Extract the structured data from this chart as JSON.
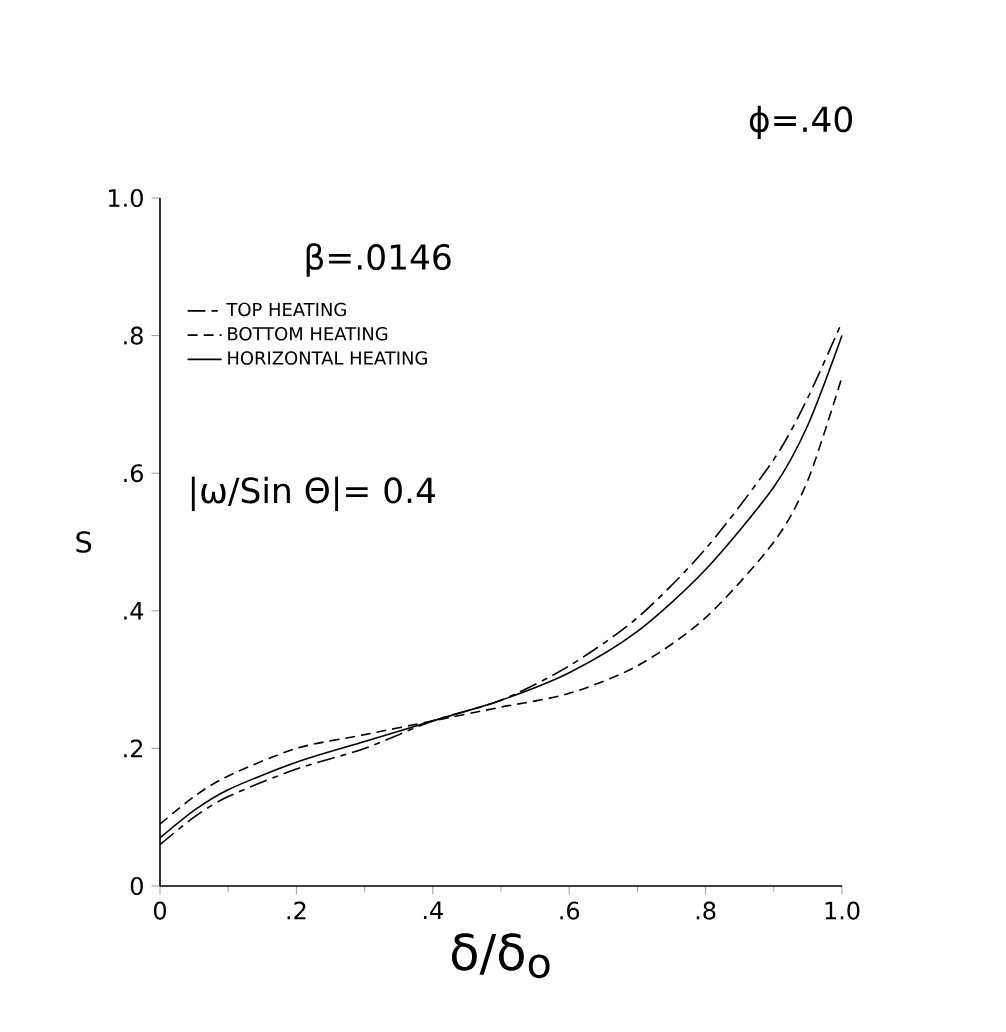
{
  "chart_data": {
    "type": "line",
    "title": "ϕ=.40",
    "xlabel": "δ/δ$_{o}$",
    "ylabel": "S",
    "x": [
      0,
      0.05,
      0.1,
      0.2,
      0.3,
      0.4,
      0.5,
      0.6,
      0.7,
      0.8,
      0.9,
      0.95,
      1.0
    ],
    "series": [
      {
        "name": "TOP HEATING",
        "color": "#000000",
        "line_style": "dashdot",
        "values": [
          0.06,
          0.1,
          0.13,
          0.17,
          0.2,
          0.24,
          0.27,
          0.32,
          0.39,
          0.49,
          0.62,
          0.71,
          0.82
        ]
      },
      {
        "name": "BOTTOM HEATING",
        "color": "#000000",
        "line_style": "dashed",
        "values": [
          0.09,
          0.13,
          0.16,
          0.2,
          0.22,
          0.24,
          0.26,
          0.28,
          0.32,
          0.39,
          0.5,
          0.59,
          0.74
        ]
      },
      {
        "name": "HORIZONTAL HEATING",
        "color": "#000000",
        "line_style": "solid",
        "values": [
          0.07,
          0.11,
          0.14,
          0.18,
          0.21,
          0.24,
          0.27,
          0.31,
          0.37,
          0.46,
          0.58,
          0.67,
          0.8
        ]
      }
    ],
    "annotations": [
      "β=.0146",
      "|ω/Sin Θ|= 0.4"
    ],
    "xlim": [
      0,
      1.0
    ],
    "ylim": [
      0,
      1.0
    ],
    "xticks": [
      0,
      {
        "value": 0.2,
        "label": ".2"
      },
      {
        "value": 0.4,
        "label": ".4"
      },
      {
        "value": 0.6,
        "label": ".6"
      },
      {
        "value": 0.8,
        "label": ".8"
      },
      {
        "value": 1.0,
        "label": "1.0"
      }
    ],
    "yticks": [
      0,
      {
        "value": 0.2,
        "label": ".2"
      },
      {
        "value": 0.4,
        "label": ".4"
      },
      {
        "value": 0.6,
        "label": ".6"
      },
      {
        "value": 0.8,
        "label": ".8"
      },
      {
        "value": 1.0,
        "label": "1.0"
      }
    ],
    "grid": false,
    "legend": "top left",
    "marker": "none"
  }
}
